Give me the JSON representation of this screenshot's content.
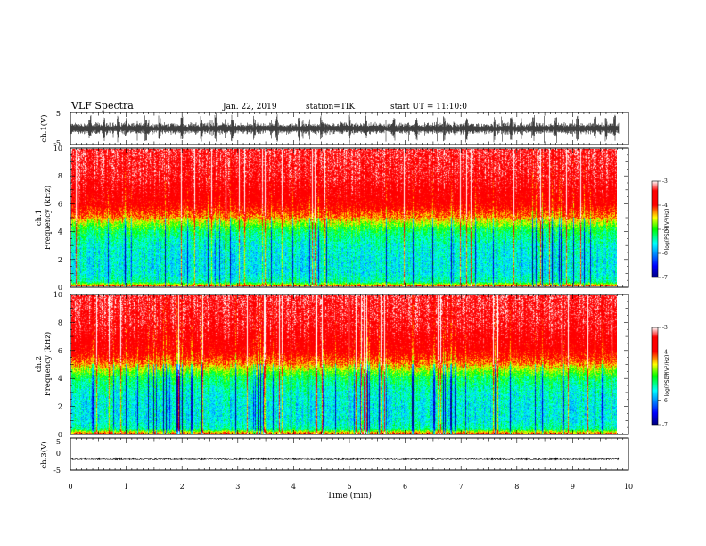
{
  "header": {
    "title": "VLF Spectra",
    "date": "Jan. 22, 2019",
    "station": "station=TIK",
    "start": "start UT = 11:10:0"
  },
  "chart_data": [
    {
      "type": "line",
      "panel": "ch1-waveform",
      "ylabel": "ch.1(V)",
      "ylim": [
        -5,
        5
      ],
      "yticks": [
        "5",
        "-5"
      ],
      "xlim": [
        0,
        10
      ],
      "x_extent": [
        0,
        9.83
      ],
      "baseline": 0,
      "typical_spread": [
        -1.5,
        1.5
      ],
      "spike_times": [
        0.35,
        0.6,
        0.85,
        1.0,
        1.35,
        1.6,
        2.0,
        2.35,
        2.6,
        2.9,
        3.3,
        3.7,
        4.1,
        4.5,
        5.0,
        5.3,
        5.8,
        6.2,
        6.7,
        7.1,
        7.6,
        7.9,
        8.3,
        8.7,
        9.1,
        9.4,
        9.6,
        9.75
      ],
      "series_color": "#000000"
    },
    {
      "type": "heatmap",
      "panel": "ch1-spectrogram",
      "ylabel": "Frequency (kHz)",
      "ylabel_prefix": "ch.1",
      "ylim": [
        0,
        10
      ],
      "yticks": [
        "0",
        "2",
        "4",
        "6",
        "8",
        "10"
      ],
      "xlim": [
        0,
        10
      ],
      "x_extent": [
        0,
        9.83
      ],
      "z_label": "log(PSD)(V²/Hz)",
      "zlim": [
        -7,
        -3
      ],
      "zticks": [
        "-7",
        "-6",
        "-5",
        "-4",
        "-3"
      ],
      "profile_freq_khz": [
        0,
        0.3,
        1,
        2,
        3,
        4,
        4.5,
        5,
        6,
        8,
        10
      ],
      "profile_log_psd": [
        -4.2,
        -5.4,
        -5.6,
        -5.6,
        -5.5,
        -5.2,
        -4.8,
        -4.3,
        -3.8,
        -3.5,
        -3.4
      ],
      "colors": [
        "#000080",
        "#0000ff",
        "#00ffff",
        "#00ff00",
        "#ffff00",
        "#ff0000",
        "#ffffff"
      ]
    },
    {
      "type": "heatmap",
      "panel": "ch2-spectrogram",
      "ylabel": "Frequency (kHz)",
      "ylabel_prefix": "ch.2",
      "ylim": [
        0,
        10
      ],
      "yticks": [
        "0",
        "2",
        "4",
        "6",
        "8",
        "10"
      ],
      "xlim": [
        0,
        10
      ],
      "x_extent": [
        0,
        9.83
      ],
      "z_label": "log(PSD)(V²/Hz)",
      "zlim": [
        -7,
        -3
      ],
      "zticks": [
        "-7",
        "-6",
        "-5",
        "-4",
        "-3"
      ],
      "profile_freq_khz": [
        0,
        0.3,
        1,
        2,
        3,
        4,
        4.5,
        5,
        6,
        8,
        10
      ],
      "profile_log_psd": [
        -4.2,
        -5.4,
        -5.6,
        -5.6,
        -5.5,
        -5.2,
        -4.8,
        -4.3,
        -3.8,
        -3.5,
        -3.4
      ],
      "colors": [
        "#000080",
        "#0000ff",
        "#00ffff",
        "#00ff00",
        "#ffff00",
        "#ff0000",
        "#ffffff"
      ]
    },
    {
      "type": "line",
      "panel": "ch3-waveform",
      "ylabel": "ch.3(V)",
      "ylim": [
        -5,
        5
      ],
      "yticks": [
        "5",
        "0",
        "-5"
      ],
      "xlim": [
        0,
        10
      ],
      "x_extent": [
        0,
        9.83
      ],
      "baseline": -1.5,
      "series_color": "#000000"
    }
  ],
  "xaxis": {
    "label": "Time (min)",
    "ticks": [
      "0",
      "1",
      "2",
      "3",
      "4",
      "5",
      "6",
      "7",
      "8",
      "9",
      "10"
    ],
    "range": [
      0,
      10
    ]
  }
}
